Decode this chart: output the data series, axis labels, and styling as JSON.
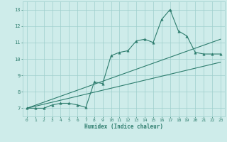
{
  "xlabel": "Humidex (Indice chaleur)",
  "x_data": [
    0,
    1,
    2,
    3,
    4,
    5,
    6,
    7,
    8,
    9,
    10,
    11,
    12,
    13,
    14,
    15,
    16,
    17,
    18,
    19,
    20,
    21,
    22,
    23
  ],
  "y_data": [
    7.0,
    7.0,
    7.0,
    7.2,
    7.3,
    7.3,
    7.2,
    7.05,
    8.6,
    8.5,
    10.2,
    10.4,
    10.5,
    11.1,
    11.2,
    11.0,
    12.4,
    13.0,
    11.7,
    11.4,
    10.4,
    10.3,
    10.3,
    10.3
  ],
  "line_color": "#2e7d6e",
  "bg_color": "#ceecea",
  "grid_color": "#9ecfcc",
  "tick_color": "#2e7d6e",
  "ylim": [
    6.5,
    13.5
  ],
  "xlim": [
    -0.5,
    23.5
  ],
  "yticks": [
    7,
    8,
    9,
    10,
    11,
    12,
    13
  ],
  "xticks": [
    0,
    1,
    2,
    3,
    4,
    5,
    6,
    7,
    8,
    9,
    10,
    11,
    12,
    13,
    14,
    15,
    16,
    17,
    18,
    19,
    20,
    21,
    22,
    23
  ],
  "trend1_x": [
    0,
    23
  ],
  "trend1_y": [
    7.0,
    11.2
  ],
  "trend2_x": [
    0,
    23
  ],
  "trend2_y": [
    7.0,
    9.8
  ]
}
